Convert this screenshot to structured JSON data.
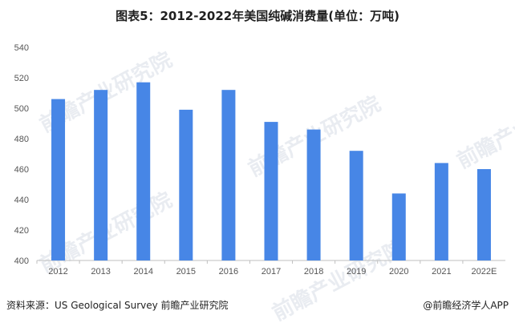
{
  "title": "图表5：2012-2022年美国纯碱消费量(单位：万吨)",
  "watermark": "前瞻产业研究院",
  "footer": {
    "source": "资料来源：US Geological Survey 前瞻产业研究院",
    "brand": "@前瞻经济学人APP"
  },
  "colors": {
    "bar": "#4786E6",
    "axis": "#bfbfbf"
  },
  "chart_data": {
    "type": "bar",
    "title": "图表5：2012-2022年美国纯碱消费量(单位：万吨)",
    "categories": [
      "2012",
      "2013",
      "2014",
      "2015",
      "2016",
      "2017",
      "2018",
      "2019",
      "2020",
      "2021",
      "2022E"
    ],
    "values": [
      506,
      512,
      517,
      499,
      512,
      491,
      486,
      472,
      444,
      464,
      460
    ],
    "ylim": [
      400,
      540
    ],
    "yticks": [
      400,
      420,
      440,
      460,
      480,
      500,
      520,
      540
    ],
    "xlabel": "",
    "ylabel": "",
    "grid": false,
    "legend": "none"
  }
}
